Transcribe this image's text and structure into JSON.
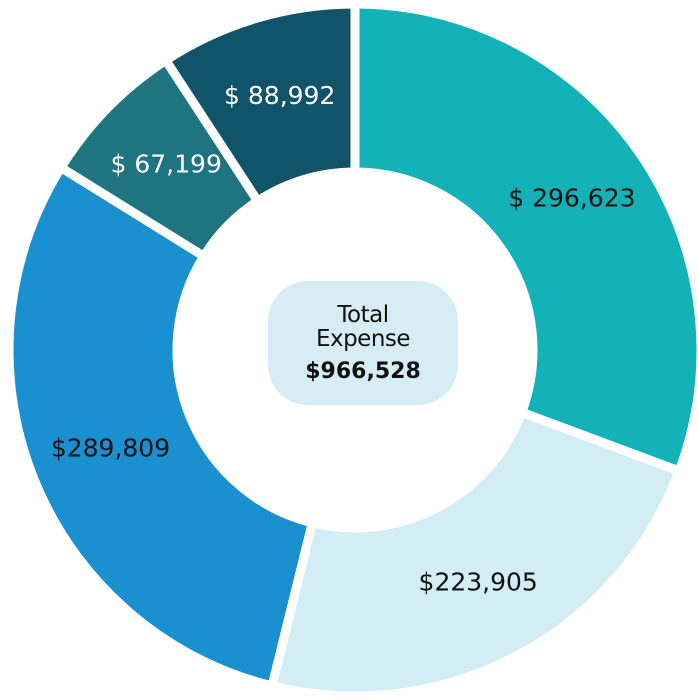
{
  "chart_data": {
    "type": "donut",
    "categories": [
      null,
      null,
      null,
      null,
      null
    ],
    "values": [
      296623,
      223905,
      289809,
      67199,
      88992
    ],
    "value_labels": [
      "$ 296,623",
      "$223,905",
      "$289,809",
      "$ 67,199",
      "$ 88,992"
    ],
    "colors": [
      "#13b2b8",
      "#d3edf5",
      "#1a90d0",
      "#1e7580",
      "#11546a"
    ],
    "center_title": "Total Expense",
    "center_value": "$966,528"
  }
}
